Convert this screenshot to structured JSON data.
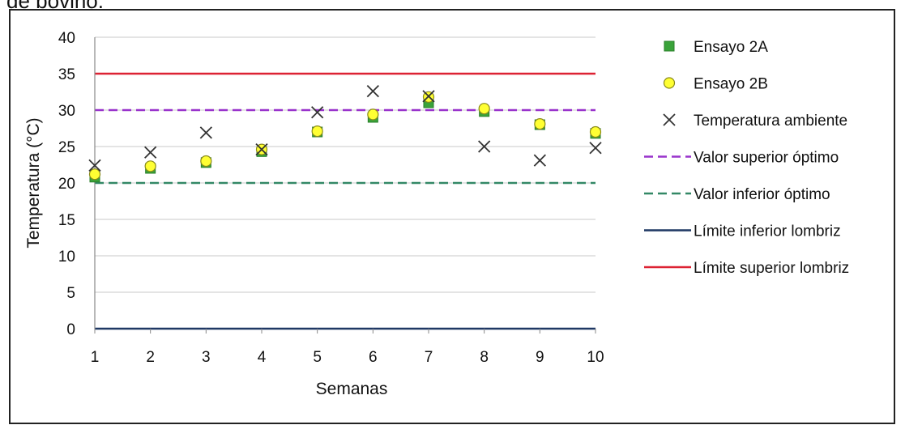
{
  "caption_fragment": "de bovino.",
  "chart_data": {
    "type": "scatter",
    "xlabel": "Semanas",
    "ylabel": "Temperatura (°C)",
    "x": [
      1,
      2,
      3,
      4,
      5,
      6,
      7,
      8,
      9,
      10
    ],
    "xlim": [
      1,
      10
    ],
    "ylim": [
      0,
      40
    ],
    "y_ticks": [
      0,
      5,
      10,
      15,
      20,
      25,
      30,
      35,
      40
    ],
    "grid": "horizontal",
    "legend_position": "right",
    "series": [
      {
        "name": "Ensayo 2A",
        "kind": "marker",
        "marker": "square",
        "color": "#3aa33a",
        "values": [
          20.8,
          22.0,
          22.8,
          24.3,
          27.0,
          29.0,
          31.0,
          29.8,
          28.0,
          26.8
        ]
      },
      {
        "name": "Ensayo 2B",
        "kind": "marker",
        "marker": "circle",
        "color": "#ffff33",
        "values": [
          21.2,
          22.3,
          23.0,
          24.6,
          27.1,
          29.4,
          31.8,
          30.2,
          28.1,
          27.0
        ]
      },
      {
        "name": "Temperatura ambiente",
        "kind": "marker",
        "marker": "x",
        "color": "#333333",
        "values": [
          22.4,
          24.2,
          26.9,
          24.6,
          29.7,
          32.6,
          31.9,
          25.0,
          23.1,
          24.8
        ]
      },
      {
        "name": "Valor superior óptimo",
        "kind": "line",
        "style": "dashed",
        "color": "#9933cc",
        "value": 30
      },
      {
        "name": "Valor inferior óptimo",
        "kind": "line",
        "style": "dashed",
        "color": "#338866",
        "value": 20
      },
      {
        "name": "Límite inferior lombriz",
        "kind": "line",
        "style": "solid",
        "color": "#1f3864",
        "value": 0
      },
      {
        "name": "Límite superior lombriz",
        "kind": "line",
        "style": "solid",
        "color": "#dd2233",
        "value": 35
      }
    ]
  }
}
